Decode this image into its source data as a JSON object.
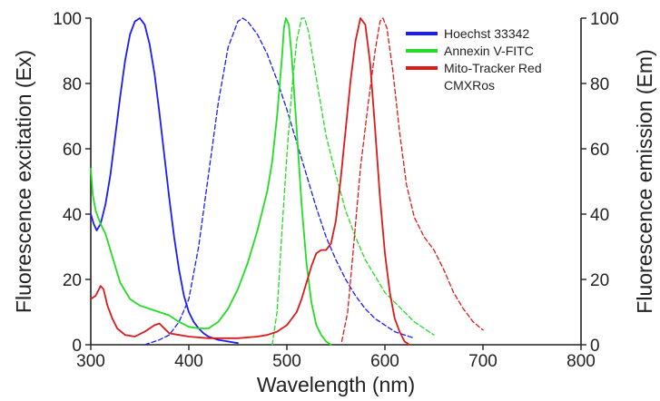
{
  "chart_data": {
    "type": "line",
    "xlabel": "Wavelength (nm)",
    "ylabel_left": "Fluorescence excitation (Ex)",
    "ylabel_right": "Fluorescence emission (Em)",
    "xlim": [
      300,
      800
    ],
    "ylim": [
      0,
      100
    ],
    "x_ticks": [
      300,
      400,
      500,
      600,
      700,
      800
    ],
    "y_ticks": [
      0,
      20,
      40,
      60,
      80,
      100
    ],
    "grid": false,
    "legend_position": "top-right",
    "series": [
      {
        "name": "Hoechst 33342",
        "color": "#1a1aff",
        "legend_index": 0,
        "kind": "excitation",
        "points": [
          [
            300,
            40
          ],
          [
            303,
            37
          ],
          [
            306,
            35
          ],
          [
            310,
            37
          ],
          [
            315,
            43
          ],
          [
            320,
            52
          ],
          [
            325,
            64
          ],
          [
            330,
            76
          ],
          [
            335,
            87
          ],
          [
            340,
            95
          ],
          [
            345,
            99
          ],
          [
            350,
            100
          ],
          [
            355,
            98
          ],
          [
            360,
            92
          ],
          [
            365,
            83
          ],
          [
            370,
            71
          ],
          [
            375,
            58
          ],
          [
            380,
            45
          ],
          [
            385,
            33
          ],
          [
            390,
            23
          ],
          [
            395,
            15
          ],
          [
            400,
            10
          ],
          [
            405,
            7
          ],
          [
            410,
            5
          ],
          [
            415,
            3.5
          ],
          [
            420,
            2.5
          ],
          [
            430,
            1.5
          ],
          [
            440,
            1
          ],
          [
            450,
            0.5
          ]
        ]
      },
      {
        "name": "Hoechst 33342",
        "color": "#1a1aff",
        "legend_index": 0,
        "kind": "emission",
        "points": [
          [
            355,
            0
          ],
          [
            370,
            1.5
          ],
          [
            380,
            3
          ],
          [
            390,
            7
          ],
          [
            400,
            14
          ],
          [
            410,
            30
          ],
          [
            420,
            52
          ],
          [
            430,
            74
          ],
          [
            440,
            91
          ],
          [
            450,
            99
          ],
          [
            455,
            100
          ],
          [
            460,
            99
          ],
          [
            470,
            95
          ],
          [
            480,
            89
          ],
          [
            490,
            81
          ],
          [
            500,
            72
          ],
          [
            510,
            62
          ],
          [
            520,
            52
          ],
          [
            530,
            42
          ],
          [
            540,
            33
          ],
          [
            550,
            26
          ],
          [
            560,
            20
          ],
          [
            570,
            15
          ],
          [
            580,
            11
          ],
          [
            590,
            8
          ],
          [
            600,
            6
          ],
          [
            610,
            4
          ],
          [
            620,
            3
          ],
          [
            630,
            2
          ]
        ]
      },
      {
        "name": "Annexin V-FITC",
        "color": "#22dd22",
        "legend_index": 1,
        "kind": "excitation",
        "points": [
          [
            300,
            54
          ],
          [
            302,
            46
          ],
          [
            305,
            41
          ],
          [
            310,
            37
          ],
          [
            315,
            34
          ],
          [
            320,
            29
          ],
          [
            325,
            24
          ],
          [
            330,
            19
          ],
          [
            340,
            14
          ],
          [
            350,
            12
          ],
          [
            360,
            11
          ],
          [
            370,
            10
          ],
          [
            380,
            9
          ],
          [
            390,
            7
          ],
          [
            400,
            5.5
          ],
          [
            410,
            5
          ],
          [
            420,
            5
          ],
          [
            430,
            7
          ],
          [
            440,
            11
          ],
          [
            450,
            17
          ],
          [
            460,
            25
          ],
          [
            470,
            35
          ],
          [
            480,
            47
          ],
          [
            485,
            56
          ],
          [
            490,
            70
          ],
          [
            495,
            88
          ],
          [
            497,
            97
          ],
          [
            499,
            100
          ],
          [
            502,
            98
          ],
          [
            505,
            88
          ],
          [
            510,
            66
          ],
          [
            515,
            43
          ],
          [
            520,
            25
          ],
          [
            525,
            13
          ],
          [
            530,
            6
          ],
          [
            535,
            3
          ],
          [
            540,
            1
          ],
          [
            545,
            0
          ]
        ]
      },
      {
        "name": "Annexin V-FITC",
        "color": "#22dd22",
        "legend_index": 1,
        "kind": "emission",
        "points": [
          [
            485,
            0
          ],
          [
            490,
            10
          ],
          [
            495,
            35
          ],
          [
            500,
            58
          ],
          [
            505,
            78
          ],
          [
            510,
            93
          ],
          [
            515,
            100
          ],
          [
            518,
            100
          ],
          [
            522,
            96
          ],
          [
            527,
            87
          ],
          [
            532,
            78
          ],
          [
            540,
            64
          ],
          [
            550,
            52
          ],
          [
            560,
            41
          ],
          [
            570,
            33
          ],
          [
            580,
            26
          ],
          [
            590,
            21
          ],
          [
            600,
            16
          ],
          [
            610,
            13
          ],
          [
            620,
            10
          ],
          [
            630,
            7
          ],
          [
            640,
            5
          ],
          [
            650,
            3
          ]
        ]
      },
      {
        "name": "Mito-Tracker Red CMXRos",
        "color": "#dd1a1a",
        "legend_index": 2,
        "kind": "excitation",
        "points": [
          [
            300,
            14
          ],
          [
            305,
            15
          ],
          [
            310,
            18
          ],
          [
            313,
            17
          ],
          [
            317,
            12
          ],
          [
            322,
            8
          ],
          [
            327,
            5
          ],
          [
            335,
            3
          ],
          [
            345,
            2.5
          ],
          [
            355,
            4
          ],
          [
            365,
            6
          ],
          [
            370,
            6.5
          ],
          [
            375,
            5
          ],
          [
            380,
            3.5
          ],
          [
            390,
            3
          ],
          [
            400,
            2.5
          ],
          [
            420,
            2
          ],
          [
            450,
            2
          ],
          [
            470,
            2.5
          ],
          [
            480,
            3
          ],
          [
            490,
            4
          ],
          [
            500,
            6
          ],
          [
            510,
            10
          ],
          [
            515,
            14
          ],
          [
            520,
            19
          ],
          [
            525,
            24
          ],
          [
            530,
            28
          ],
          [
            535,
            29
          ],
          [
            540,
            29
          ],
          [
            545,
            31
          ],
          [
            550,
            38
          ],
          [
            555,
            51
          ],
          [
            560,
            66
          ],
          [
            565,
            81
          ],
          [
            570,
            93
          ],
          [
            575,
            100
          ],
          [
            580,
            98
          ],
          [
            585,
            86
          ],
          [
            590,
            66
          ],
          [
            595,
            45
          ],
          [
            600,
            28
          ],
          [
            605,
            16
          ],
          [
            610,
            8
          ],
          [
            615,
            4
          ],
          [
            620,
            1
          ],
          [
            625,
            0
          ]
        ]
      },
      {
        "name": "Mito-Tracker Red CMXRos",
        "color": "#dd1a1a",
        "legend_index": 2,
        "kind": "emission",
        "points": [
          [
            556,
            1
          ],
          [
            562,
            10
          ],
          [
            568,
            30
          ],
          [
            575,
            54
          ],
          [
            583,
            74
          ],
          [
            590,
            90
          ],
          [
            595,
            99
          ],
          [
            598,
            100
          ],
          [
            602,
            97
          ],
          [
            608,
            84
          ],
          [
            615,
            65
          ],
          [
            622,
            49
          ],
          [
            630,
            39
          ],
          [
            640,
            33
          ],
          [
            650,
            29
          ],
          [
            660,
            23
          ],
          [
            670,
            16
          ],
          [
            680,
            11
          ],
          [
            690,
            7
          ],
          [
            700,
            4.5
          ]
        ]
      }
    ],
    "legend": [
      {
        "label": "Hoechst 33342",
        "color": "#1a1aff"
      },
      {
        "label": "Annexin V-FITC",
        "color": "#22dd22"
      },
      {
        "label": "Mito-Tracker Red",
        "color": "#dd1a1a"
      },
      {
        "label": "CMXRos",
        "color": ""
      }
    ]
  }
}
